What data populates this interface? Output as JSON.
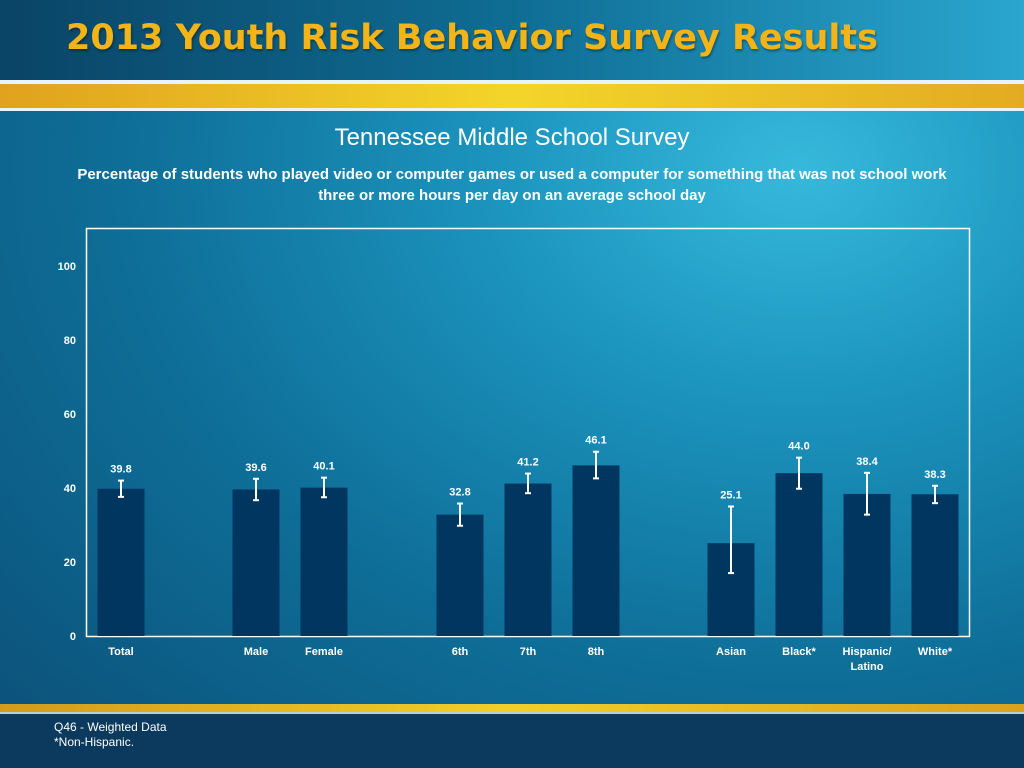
{
  "header": {
    "title": "2013 Youth Risk Behavior Survey Results"
  },
  "subtitle": "Tennessee Middle School Survey",
  "description": "Percentage of students who played video or computer games or used a computer for something that was not school work three or more hours per day on an average school day",
  "footer": {
    "note1": "Q46 - Weighted Data",
    "note2": "*Non-Hispanic."
  },
  "colors": {
    "bar": "#003660",
    "title": "#f2b417",
    "error_bar": "#ffffff"
  },
  "chart_data": {
    "type": "bar",
    "title": "",
    "xlabel": "",
    "ylabel": "",
    "ylim": [
      0,
      100
    ],
    "yticks": [
      0,
      20,
      40,
      60,
      80,
      100
    ],
    "grid": false,
    "legend": "none",
    "error_bars": true,
    "categories": [
      [
        "Total"
      ],
      [
        "Male"
      ],
      [
        "Female"
      ],
      [
        "6th"
      ],
      [
        "7th"
      ],
      [
        "8th"
      ],
      [
        "Asian"
      ],
      [
        "Black*"
      ],
      [
        "Hispanic/",
        "Latino"
      ],
      [
        "White*"
      ]
    ],
    "groups": [
      [
        "Total"
      ],
      [
        "Male",
        "Female"
      ],
      [
        "6th",
        "7th",
        "8th"
      ],
      [
        "Asian",
        "Black*",
        "Hispanic/Latino",
        "White*"
      ]
    ],
    "values": [
      39.8,
      39.6,
      40.1,
      32.8,
      41.2,
      46.1,
      25.1,
      44.0,
      38.4,
      38.3
    ],
    "labels": [
      "39.8",
      "39.6",
      "40.1",
      "32.8",
      "41.2",
      "46.1",
      "25.1",
      "44.0",
      "38.4",
      "38.3"
    ],
    "ci_low": [
      37.6,
      36.7,
      37.5,
      29.8,
      38.6,
      42.6,
      17.0,
      39.8,
      32.8,
      35.9
    ],
    "ci_high": [
      42.0,
      42.5,
      42.8,
      35.8,
      43.9,
      49.8,
      35.0,
      48.2,
      44.1,
      40.6
    ]
  }
}
